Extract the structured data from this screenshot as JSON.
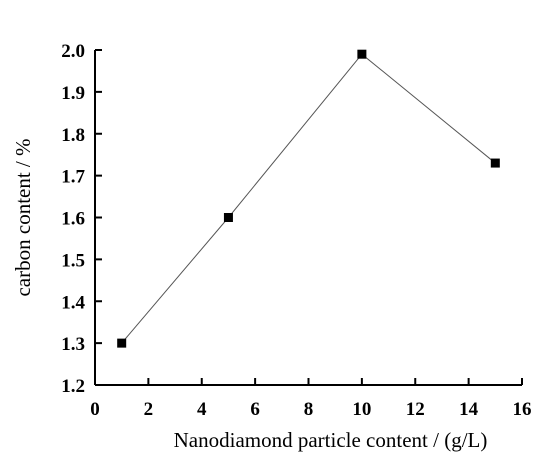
{
  "chart_data": {
    "type": "line",
    "xlabel": "Nanodiamond particle content / (g/L)",
    "ylabel": "carbon content / %",
    "xlim": [
      0,
      16
    ],
    "ylim": [
      1.2,
      2.0
    ],
    "x_ticks": [
      "0",
      "2",
      "4",
      "6",
      "8",
      "10",
      "12",
      "14",
      "16"
    ],
    "y_ticks": [
      "1.2",
      "1.3",
      "1.4",
      "1.5",
      "1.6",
      "1.7",
      "1.8",
      "1.9",
      "2.0"
    ],
    "grid": false,
    "series": [
      {
        "x": [
          1,
          5,
          10,
          15
        ],
        "y": [
          1.3,
          1.6,
          1.99,
          1.73
        ],
        "marker": "square",
        "color": "#000000",
        "line_color": "#555555"
      }
    ]
  }
}
